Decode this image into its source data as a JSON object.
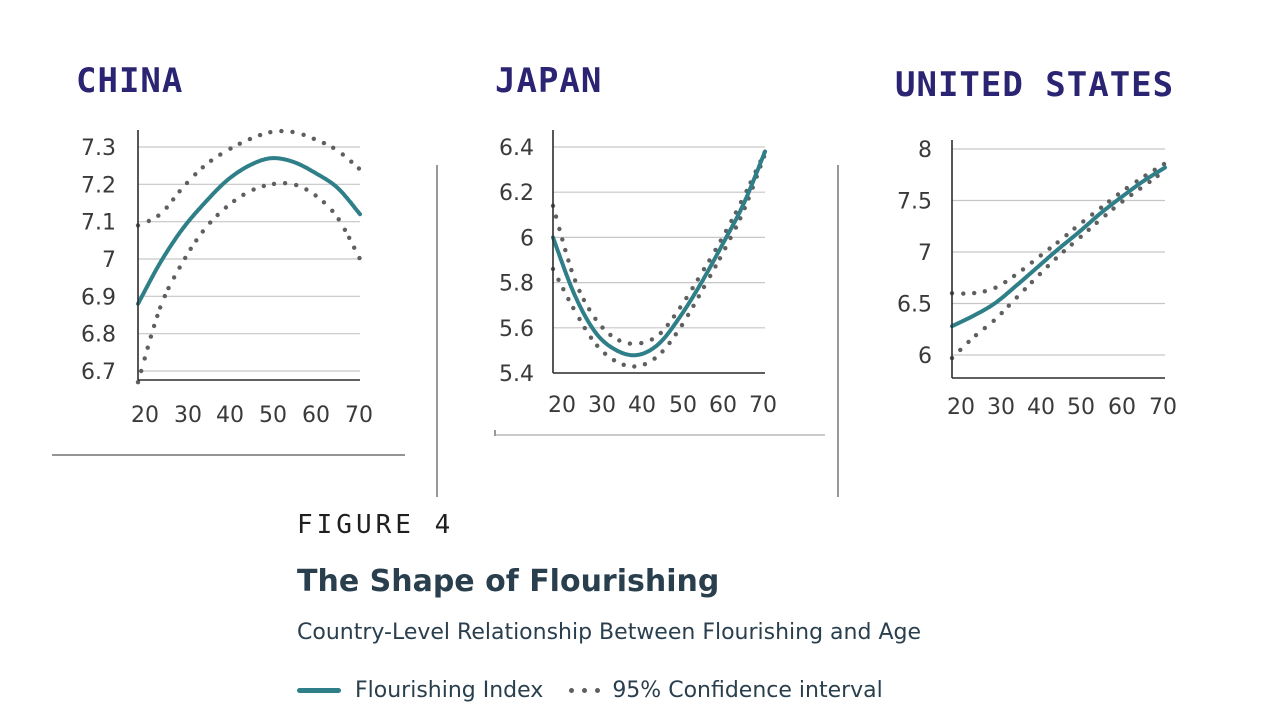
{
  "figure": {
    "label": "FIGURE 4",
    "title": "The Shape of Flourishing",
    "subtitle": "Country-Level Relationship Between Flourishing and Age",
    "legend": {
      "index_label": "Flourishing Index",
      "ci_label": "95% Confidence interval"
    }
  },
  "colors": {
    "index_line": "#2f7f89",
    "ci_dots": "#5f5f5f",
    "country_title": "#2b2472"
  },
  "chart_data": [
    {
      "type": "line",
      "title": "CHINA",
      "x_ticks": [
        "20",
        "30",
        "40",
        "50",
        "60",
        "70"
      ],
      "y_ticks": [
        "6.7",
        "6.8",
        "6.9",
        "7",
        "7.1",
        "7.2",
        "7.3"
      ],
      "xlim": [
        20,
        70
      ],
      "ylim": [
        6.67,
        7.34
      ],
      "grid": true,
      "series": [
        {
          "name": "Flourishing Index",
          "style": "solid",
          "x": [
            20,
            25,
            30,
            35,
            40,
            45,
            50,
            55,
            60,
            65,
            70
          ],
          "y": [
            6.88,
            6.99,
            7.08,
            7.15,
            7.21,
            7.25,
            7.27,
            7.26,
            7.23,
            7.19,
            7.12
          ]
        },
        {
          "name": "95% Confidence interval (upper)",
          "style": "dotted",
          "x": [
            20,
            25,
            30,
            35,
            40,
            45,
            50,
            55,
            60,
            65,
            70
          ],
          "y": [
            7.09,
            7.12,
            7.19,
            7.25,
            7.29,
            7.32,
            7.34,
            7.34,
            7.32,
            7.29,
            7.24
          ]
        },
        {
          "name": "95% Confidence interval (lower)",
          "style": "dotted",
          "x": [
            20,
            25,
            30,
            35,
            40,
            45,
            50,
            55,
            60,
            65,
            70
          ],
          "y": [
            6.67,
            6.87,
            6.99,
            7.08,
            7.14,
            7.18,
            7.2,
            7.2,
            7.17,
            7.11,
            7.0
          ]
        }
      ]
    },
    {
      "type": "line",
      "title": "JAPAN",
      "x_ticks": [
        "20",
        "30",
        "40",
        "50",
        "60",
        "70"
      ],
      "y_ticks": [
        "5.4",
        "5.6",
        "5.8",
        "6",
        "6.2",
        "6.4"
      ],
      "xlim": [
        20,
        70
      ],
      "ylim": [
        5.4,
        6.4
      ],
      "grid": true,
      "series": [
        {
          "name": "Flourishing Index",
          "style": "solid",
          "x": [
            20,
            25,
            30,
            35,
            40,
            45,
            50,
            55,
            60,
            65,
            70
          ],
          "y": [
            6.0,
            5.75,
            5.58,
            5.5,
            5.48,
            5.53,
            5.65,
            5.8,
            5.97,
            6.15,
            6.38
          ]
        },
        {
          "name": "95% Confidence interval (upper)",
          "style": "dotted",
          "x": [
            20,
            25,
            30,
            35,
            40,
            45,
            50,
            55,
            60,
            65,
            70
          ],
          "y": [
            6.14,
            5.82,
            5.64,
            5.55,
            5.53,
            5.57,
            5.69,
            5.84,
            6.0,
            6.18,
            6.38
          ]
        },
        {
          "name": "95% Confidence interval (lower)",
          "style": "dotted",
          "x": [
            20,
            25,
            30,
            35,
            40,
            45,
            50,
            55,
            60,
            65,
            70
          ],
          "y": [
            5.86,
            5.68,
            5.53,
            5.45,
            5.43,
            5.48,
            5.6,
            5.76,
            5.93,
            6.12,
            6.37
          ]
        }
      ]
    },
    {
      "type": "line",
      "title": "UNITED STATES",
      "x_ticks": [
        "20",
        "30",
        "40",
        "50",
        "60",
        "70"
      ],
      "y_ticks": [
        "6",
        "6.5",
        "7",
        "7.5",
        "8"
      ],
      "xlim": [
        20,
        70
      ],
      "ylim": [
        5.8,
        8
      ],
      "grid": true,
      "series": [
        {
          "name": "Flourishing Index",
          "style": "solid",
          "x": [
            20,
            25,
            30,
            35,
            40,
            45,
            50,
            55,
            60,
            65,
            70
          ],
          "y": [
            6.28,
            6.38,
            6.5,
            6.67,
            6.85,
            7.03,
            7.2,
            7.38,
            7.54,
            7.69,
            7.82
          ]
        },
        {
          "name": "95% Confidence interval (upper)",
          "style": "dotted",
          "x": [
            20,
            25,
            30,
            35,
            40,
            45,
            50,
            55,
            60,
            65,
            70
          ],
          "y": [
            6.6,
            6.6,
            6.65,
            6.78,
            6.94,
            7.1,
            7.27,
            7.43,
            7.59,
            7.73,
            7.86
          ]
        },
        {
          "name": "95% Confidence interval (lower)",
          "style": "dotted",
          "x": [
            20,
            25,
            30,
            35,
            40,
            45,
            50,
            55,
            60,
            65,
            70
          ],
          "y": [
            5.97,
            6.17,
            6.34,
            6.55,
            6.76,
            6.96,
            7.14,
            7.32,
            7.49,
            7.64,
            7.79
          ]
        }
      ]
    }
  ]
}
